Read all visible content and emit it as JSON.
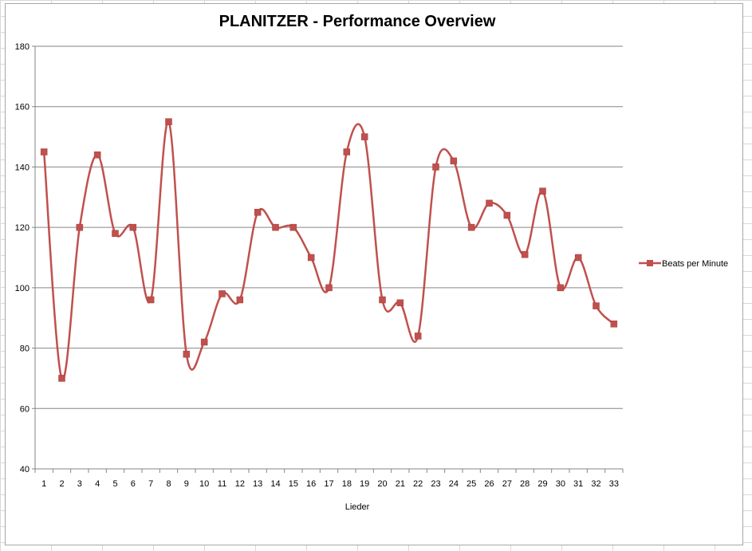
{
  "chart_data": {
    "type": "line",
    "title": "PLANITZER  - Performance Overview",
    "xlabel": "Lieder",
    "ylabel": "",
    "ylim": [
      40,
      180
    ],
    "yticks": [
      40,
      60,
      80,
      100,
      120,
      140,
      160,
      180
    ],
    "grid": "horizontal",
    "smooth": true,
    "legend_position": "right",
    "categories": [
      "1",
      "2",
      "3",
      "4",
      "5",
      "6",
      "7",
      "8",
      "9",
      "10",
      "11",
      "12",
      "13",
      "14",
      "15",
      "16",
      "17",
      "18",
      "19",
      "20",
      "21",
      "22",
      "23",
      "24",
      "25",
      "26",
      "27",
      "28",
      "29",
      "30",
      "31",
      "32",
      "33"
    ],
    "series": [
      {
        "name": "Beats per Minute",
        "color": "#c0504d",
        "marker": "square",
        "values": [
          145,
          70,
          120,
          144,
          118,
          120,
          96,
          155,
          78,
          82,
          98,
          96,
          125,
          120,
          120,
          110,
          100,
          145,
          150,
          96,
          95,
          84,
          140,
          142,
          120,
          128,
          124,
          111,
          132,
          100,
          110,
          94,
          88
        ]
      }
    ]
  }
}
